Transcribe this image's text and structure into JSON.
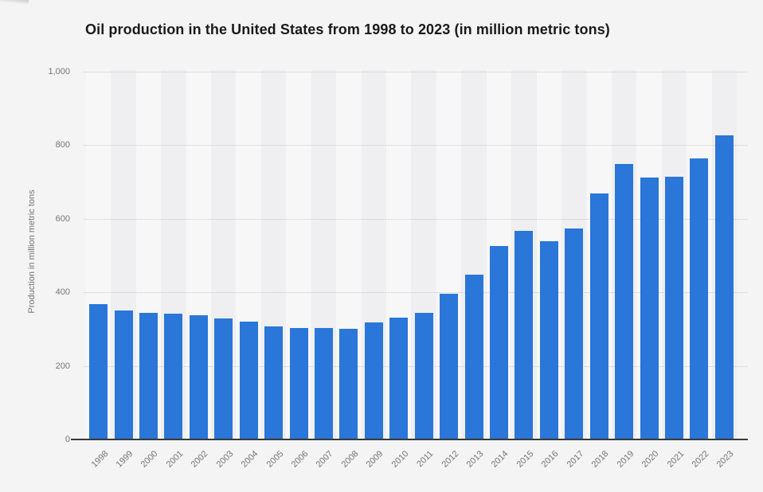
{
  "page": {
    "background_color": "#f4f4f5"
  },
  "chart_data": {
    "type": "bar",
    "title": "Oil production in the United States from 1998 to 2023 (in million metric tons)",
    "ylabel": "Production in million metric tons",
    "xlabel": "",
    "categories": [
      "1998",
      "1999",
      "2000",
      "2001",
      "2002",
      "2003",
      "2004",
      "2005",
      "2006",
      "2007",
      "2008",
      "2009",
      "2010",
      "2011",
      "2012",
      "2013",
      "2014",
      "2015",
      "2016",
      "2017",
      "2018",
      "2019",
      "2020",
      "2021",
      "2022",
      "2023"
    ],
    "values": [
      367,
      351,
      345,
      343,
      338,
      330,
      321,
      308,
      303,
      302,
      300,
      319,
      331,
      345,
      396,
      448,
      526,
      567,
      539,
      573,
      669,
      750,
      712,
      714,
      763,
      826
    ],
    "ylim": [
      0,
      1000
    ],
    "ytick_interval": 200,
    "yticks": [
      {
        "label": "1,000",
        "value": 1000
      },
      {
        "label": "800",
        "value": 800
      },
      {
        "label": "600",
        "value": 600
      },
      {
        "label": "400",
        "value": 400
      },
      {
        "label": "200",
        "value": 200
      },
      {
        "label": "0",
        "value": 0
      }
    ],
    "grid": true,
    "legend": false,
    "colors": {
      "bar": "#2a76d9",
      "title_text": "#1a1a1a",
      "tick_text": "#757575",
      "axis_line": "#3a3a3c",
      "gridline": "#c9cacc",
      "stripe_light": "#f7f7f8",
      "stripe_dark": "#efeff1"
    }
  }
}
